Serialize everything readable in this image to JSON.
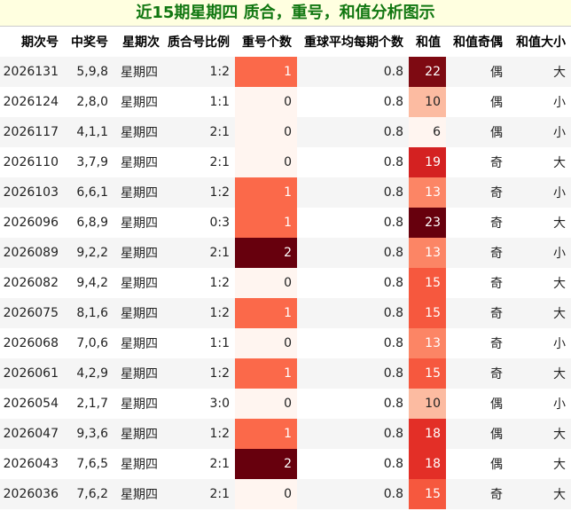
{
  "title": "近15期星期四 质合，重号，和值分析图示",
  "columns": [
    "期次号",
    "中奖号",
    "星期次",
    "质合号比例",
    "重号个数",
    "重球平均每期个数",
    "和值",
    "和值奇偶",
    "和值大小"
  ],
  "rows": [
    {
      "issue": "2026131",
      "numbers": "5,9,8",
      "weekday": "星期四",
      "ratio": "1:2",
      "repeat": "1",
      "avg": "0.8",
      "sum": "22",
      "parity": "偶",
      "size": "大",
      "repeat_color": "#fb694a",
      "sum_color": "#7e0a12"
    },
    {
      "issue": "2026124",
      "numbers": "2,8,0",
      "weekday": "星期四",
      "ratio": "1:1",
      "repeat": "0",
      "avg": "0.8",
      "sum": "10",
      "parity": "偶",
      "size": "小",
      "repeat_color": "#fff5f0",
      "sum_color": "#fcbba1"
    },
    {
      "issue": "2026117",
      "numbers": "4,1,1",
      "weekday": "星期四",
      "ratio": "2:1",
      "repeat": "0",
      "avg": "0.8",
      "sum": "6",
      "parity": "偶",
      "size": "小",
      "repeat_color": "#fff5f0",
      "sum_color": "#fff5f0"
    },
    {
      "issue": "2026110",
      "numbers": "3,7,9",
      "weekday": "星期四",
      "ratio": "2:1",
      "repeat": "0",
      "avg": "0.8",
      "sum": "19",
      "parity": "奇",
      "size": "大",
      "repeat_color": "#fff5f0",
      "sum_color": "#d42121"
    },
    {
      "issue": "2026103",
      "numbers": "6,6,1",
      "weekday": "星期四",
      "ratio": "1:2",
      "repeat": "1",
      "avg": "0.8",
      "sum": "13",
      "parity": "奇",
      "size": "小",
      "repeat_color": "#fb694a",
      "sum_color": "#fc8565"
    },
    {
      "issue": "2026096",
      "numbers": "6,8,9",
      "weekday": "星期四",
      "ratio": "0:3",
      "repeat": "1",
      "avg": "0.8",
      "sum": "23",
      "parity": "奇",
      "size": "大",
      "repeat_color": "#fb694a",
      "sum_color": "#67000d"
    },
    {
      "issue": "2026089",
      "numbers": "9,2,2",
      "weekday": "星期四",
      "ratio": "2:1",
      "repeat": "2",
      "avg": "0.8",
      "sum": "13",
      "parity": "奇",
      "size": "小",
      "repeat_color": "#67000d",
      "sum_color": "#fc8565"
    },
    {
      "issue": "2026082",
      "numbers": "9,4,2",
      "weekday": "星期四",
      "ratio": "1:2",
      "repeat": "0",
      "avg": "0.8",
      "sum": "15",
      "parity": "奇",
      "size": "大",
      "repeat_color": "#fff5f0",
      "sum_color": "#f6583e"
    },
    {
      "issue": "2026075",
      "numbers": "8,1,6",
      "weekday": "星期四",
      "ratio": "1:2",
      "repeat": "1",
      "avg": "0.8",
      "sum": "15",
      "parity": "奇",
      "size": "大",
      "repeat_color": "#fb694a",
      "sum_color": "#f6583e"
    },
    {
      "issue": "2026068",
      "numbers": "7,0,6",
      "weekday": "星期四",
      "ratio": "1:1",
      "repeat": "0",
      "avg": "0.8",
      "sum": "13",
      "parity": "奇",
      "size": "小",
      "repeat_color": "#fff5f0",
      "sum_color": "#fc8565"
    },
    {
      "issue": "2026061",
      "numbers": "4,2,9",
      "weekday": "星期四",
      "ratio": "1:2",
      "repeat": "1",
      "avg": "0.8",
      "sum": "15",
      "parity": "奇",
      "size": "大",
      "repeat_color": "#fb694a",
      "sum_color": "#f6583e"
    },
    {
      "issue": "2026054",
      "numbers": "2,1,7",
      "weekday": "星期四",
      "ratio": "3:0",
      "repeat": "0",
      "avg": "0.8",
      "sum": "10",
      "parity": "偶",
      "size": "小",
      "repeat_color": "#fff5f0",
      "sum_color": "#fcbba1"
    },
    {
      "issue": "2026047",
      "numbers": "9,3,6",
      "weekday": "星期四",
      "ratio": "1:2",
      "repeat": "1",
      "avg": "0.8",
      "sum": "18",
      "parity": "偶",
      "size": "大",
      "repeat_color": "#fb694a",
      "sum_color": "#e32f27"
    },
    {
      "issue": "2026043",
      "numbers": "7,6,5",
      "weekday": "星期四",
      "ratio": "2:1",
      "repeat": "2",
      "avg": "0.8",
      "sum": "18",
      "parity": "偶",
      "size": "大",
      "repeat_color": "#67000d",
      "sum_color": "#e32f27"
    },
    {
      "issue": "2026036",
      "numbers": "7,6,2",
      "weekday": "星期四",
      "ratio": "2:1",
      "repeat": "0",
      "avg": "0.8",
      "sum": "15",
      "parity": "奇",
      "size": "大",
      "repeat_color": "#fff5f0",
      "sum_color": "#f6583e"
    }
  ]
}
